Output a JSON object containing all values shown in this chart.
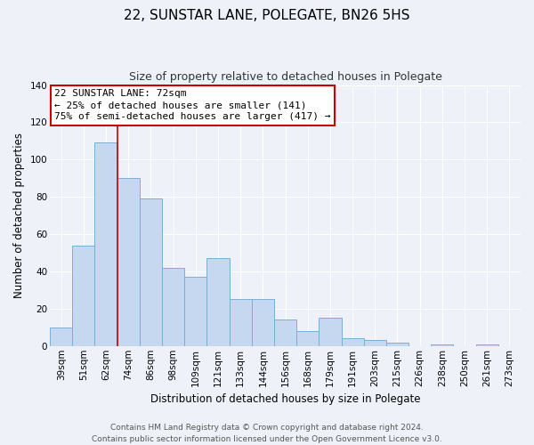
{
  "title": "22, SUNSTAR LANE, POLEGATE, BN26 5HS",
  "subtitle": "Size of property relative to detached houses in Polegate",
  "xlabel": "Distribution of detached houses by size in Polegate",
  "ylabel": "Number of detached properties",
  "categories": [
    "39sqm",
    "51sqm",
    "62sqm",
    "74sqm",
    "86sqm",
    "98sqm",
    "109sqm",
    "121sqm",
    "133sqm",
    "144sqm",
    "156sqm",
    "168sqm",
    "179sqm",
    "191sqm",
    "203sqm",
    "215sqm",
    "226sqm",
    "238sqm",
    "250sqm",
    "261sqm",
    "273sqm"
  ],
  "values": [
    10,
    54,
    109,
    90,
    79,
    42,
    37,
    47,
    25,
    25,
    14,
    8,
    15,
    4,
    3,
    2,
    0,
    1,
    0,
    1,
    0
  ],
  "bar_color": "#c5d8f0",
  "bar_edge_color": "#7bafd4",
  "vline_x": 2.5,
  "vline_color": "#cc0000",
  "ylim": [
    0,
    140
  ],
  "yticks": [
    0,
    20,
    40,
    60,
    80,
    100,
    120,
    140
  ],
  "annotation_title": "22 SUNSTAR LANE: 72sqm",
  "annotation_line1": "← 25% of detached houses are smaller (141)",
  "annotation_line2": "75% of semi-detached houses are larger (417) →",
  "footer_line1": "Contains HM Land Registry data © Crown copyright and database right 2024.",
  "footer_line2": "Contains public sector information licensed under the Open Government Licence v3.0.",
  "background_color": "#eef2f8",
  "grid_color": "#ffffff",
  "title_fontsize": 11,
  "subtitle_fontsize": 9,
  "axis_label_fontsize": 8.5,
  "tick_fontsize": 7.5,
  "footer_fontsize": 6.5,
  "annotation_fontsize": 8
}
